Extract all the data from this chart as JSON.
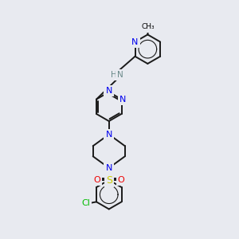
{
  "background_color": "#e8eaf0",
  "bond_color": "#1a1a1a",
  "bond_width": 1.4,
  "atom_colors": {
    "N": "#0000ee",
    "NH": "#6a8a8a",
    "O": "#ee0000",
    "S": "#cccc00",
    "Cl": "#00bb00",
    "C": "#1a1a1a"
  },
  "figsize": [
    3.0,
    3.0
  ],
  "dpi": 100
}
